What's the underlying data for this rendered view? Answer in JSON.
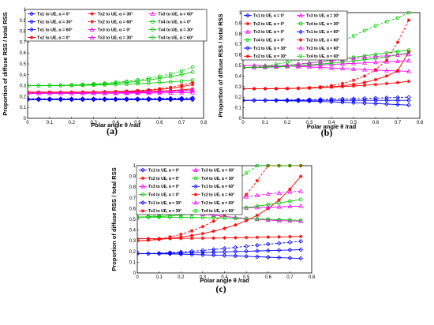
{
  "chart_data": [
    {
      "type": "line",
      "panel_label": "(a)",
      "xlabel": "Polar angle θ /rad",
      "ylabel": "Proportion of diffuse RSS / total RSS",
      "xlim": [
        0,
        0.8
      ],
      "ylim": [
        0,
        1
      ],
      "xticks": [
        "0",
        "0.1",
        "0.2",
        "0.3",
        "0.4",
        "0.5",
        "0.6",
        "0.7",
        "0.8"
      ],
      "yticks": [
        "0",
        "0.1",
        "0.2",
        "0.3",
        "0.4",
        "0.5",
        "0.6",
        "0.7",
        "0.8",
        "0.9",
        "1"
      ],
      "legend_position": "top",
      "x": [
        0,
        0.05,
        0.1,
        0.15,
        0.2,
        0.25,
        0.3,
        0.35,
        0.4,
        0.45,
        0.5,
        0.55,
        0.6,
        0.65,
        0.7,
        0.75
      ],
      "series": [
        {
          "name": "Tx1 to UE, α = 0°",
          "color": "#0000ff",
          "marker": "diamond",
          "dash": "solid",
          "values": [
            0.175,
            0.175,
            0.175,
            0.175,
            0.175,
            0.175,
            0.175,
            0.175,
            0.175,
            0.175,
            0.175,
            0.176,
            0.176,
            0.177,
            0.178,
            0.18
          ]
        },
        {
          "name": "Tx1 to UE, α = 30°",
          "color": "#0000ff",
          "marker": "diamond",
          "dash": "solid",
          "values": [
            0.17,
            0.17,
            0.17,
            0.17,
            0.17,
            0.17,
            0.17,
            0.17,
            0.17,
            0.17,
            0.17,
            0.17,
            0.17,
            0.17,
            0.17,
            0.17
          ]
        },
        {
          "name": "Tx1 to UE, α = 60°",
          "color": "#0000ff",
          "marker": "diamond",
          "dash": "dashed",
          "values": [
            0.18,
            0.18,
            0.18,
            0.18,
            0.18,
            0.18,
            0.18,
            0.18,
            0.18,
            0.18,
            0.181,
            0.182,
            0.183,
            0.184,
            0.186,
            0.188
          ]
        },
        {
          "name": "Tx2 to UE, α = 0°",
          "color": "#ff0000",
          "marker": "star",
          "dash": "solid",
          "values": [
            0.24,
            0.24,
            0.24,
            0.24,
            0.24,
            0.241,
            0.242,
            0.243,
            0.245,
            0.248,
            0.252,
            0.257,
            0.265,
            0.275,
            0.29,
            0.31
          ]
        },
        {
          "name": "Tx2 to UE, α = 30°",
          "color": "#ff0000",
          "marker": "star",
          "dash": "solid",
          "values": [
            0.24,
            0.24,
            0.24,
            0.24,
            0.24,
            0.24,
            0.241,
            0.241,
            0.242,
            0.243,
            0.245,
            0.247,
            0.25,
            0.255,
            0.262,
            0.27
          ]
        },
        {
          "name": "Tx2 to UE, α = 60°",
          "color": "#ff0000",
          "marker": "star",
          "dash": "dashed",
          "values": [
            0.24,
            0.24,
            0.24,
            0.24,
            0.24,
            0.241,
            0.242,
            0.244,
            0.246,
            0.25,
            0.255,
            0.262,
            0.272,
            0.285,
            0.305,
            0.33
          ]
        },
        {
          "name": "Tx3 to UE, α = 0°",
          "color": "#ff00ff",
          "marker": "triangle",
          "dash": "solid",
          "values": [
            0.23,
            0.23,
            0.23,
            0.23,
            0.23,
            0.23,
            0.231,
            0.232,
            0.233,
            0.235,
            0.237,
            0.24,
            0.243,
            0.247,
            0.25,
            0.255
          ]
        },
        {
          "name": "Tx3 to UE, α = 30°",
          "color": "#ff00ff",
          "marker": "triangle",
          "dash": "solid",
          "values": [
            0.23,
            0.23,
            0.23,
            0.23,
            0.23,
            0.23,
            0.23,
            0.23,
            0.231,
            0.231,
            0.232,
            0.232,
            0.233,
            0.234,
            0.235,
            0.236
          ]
        },
        {
          "name": "Tx3 to UE, α = 60°",
          "color": "#ff00ff",
          "marker": "triangle",
          "dash": "dashed",
          "values": [
            0.23,
            0.23,
            0.23,
            0.23,
            0.23,
            0.231,
            0.232,
            0.233,
            0.235,
            0.238,
            0.24,
            0.243,
            0.246,
            0.25,
            0.255,
            0.26
          ]
        },
        {
          "name": "Tx4 to UE, α = 0°",
          "color": "#00cc00",
          "marker": "circle",
          "dash": "solid",
          "values": [
            0.3,
            0.3,
            0.301,
            0.302,
            0.304,
            0.307,
            0.311,
            0.316,
            0.322,
            0.33,
            0.34,
            0.352,
            0.366,
            0.383,
            0.403,
            0.425
          ]
        },
        {
          "name": "Tx4 to UE, α = 30°",
          "color": "#00cc00",
          "marker": "circle",
          "dash": "solid",
          "values": [
            0.3,
            0.3,
            0.3,
            0.301,
            0.302,
            0.303,
            0.305,
            0.307,
            0.31,
            0.314,
            0.318,
            0.323,
            0.329,
            0.335,
            0.342,
            0.35
          ]
        },
        {
          "name": "Tx4 to UE, α = 60°",
          "color": "#00cc00",
          "marker": "circle",
          "dash": "dashed",
          "values": [
            0.3,
            0.301,
            0.302,
            0.304,
            0.307,
            0.311,
            0.316,
            0.322,
            0.33,
            0.34,
            0.352,
            0.367,
            0.385,
            0.407,
            0.435,
            0.47
          ]
        }
      ]
    },
    {
      "type": "line",
      "panel_label": "(b)",
      "xlabel": "Polar angle θ /rad",
      "ylabel": "Proportion of diffuse RSS / total RSS",
      "xlim": [
        0,
        0.8
      ],
      "ylim": [
        0,
        1
      ],
      "xticks": [
        "0",
        "0.1",
        "0.2",
        "0.3",
        "0.4",
        "0.5",
        "0.6",
        "0.7",
        "0.8"
      ],
      "yticks": [
        "0",
        "0.1",
        "0.2",
        "0.3",
        "0.4",
        "0.5",
        "0.6",
        "0.7",
        "0.8",
        "0.9",
        "1"
      ],
      "legend_position": "top-left",
      "x": [
        0,
        0.05,
        0.1,
        0.15,
        0.2,
        0.25,
        0.3,
        0.35,
        0.4,
        0.45,
        0.5,
        0.55,
        0.6,
        0.65,
        0.7,
        0.75
      ],
      "series": [
        {
          "name": "Tx1 to UE, α = 0°",
          "color": "#0000ff",
          "marker": "diamond",
          "dash": "solid",
          "values": [
            0.17,
            0.17,
            0.169,
            0.168,
            0.166,
            0.164,
            0.162,
            0.159,
            0.156,
            0.152,
            0.148,
            0.144,
            0.14,
            0.135,
            0.13,
            0.125
          ]
        },
        {
          "name": "Tx2 to UE, α = 0°",
          "color": "#ff0000",
          "marker": "star",
          "dash": "solid",
          "values": [
            0.28,
            0.28,
            0.28,
            0.281,
            0.282,
            0.284,
            0.287,
            0.29,
            0.295,
            0.3,
            0.306,
            0.313,
            0.32,
            0.329,
            0.338,
            0.35
          ]
        },
        {
          "name": "Tx3 to UE, α = 0°",
          "color": "#ff00ff",
          "marker": "triangle",
          "dash": "solid",
          "values": [
            0.5,
            0.5,
            0.499,
            0.497,
            0.494,
            0.49,
            0.486,
            0.481,
            0.476,
            0.471,
            0.466,
            0.461,
            0.456,
            0.452,
            0.448,
            0.445
          ]
        },
        {
          "name": "Tx4 to UE, α = 0°",
          "color": "#00cc00",
          "marker": "circle",
          "dash": "solid",
          "values": [
            0.48,
            0.482,
            0.486,
            0.492,
            0.5,
            0.51,
            0.522,
            0.535,
            0.549,
            0.563,
            0.577,
            0.591,
            0.605,
            0.619,
            0.633,
            0.645
          ]
        },
        {
          "name": "Tx1 to UE, α = 30°",
          "color": "#0000ff",
          "marker": "diamond",
          "dash": "solid",
          "values": [
            0.17,
            0.17,
            0.17,
            0.17,
            0.17,
            0.17,
            0.17,
            0.17,
            0.17,
            0.17,
            0.17,
            0.17,
            0.17,
            0.17,
            0.17,
            0.17
          ]
        },
        {
          "name": "Tx2 to UE, α = 30°",
          "color": "#ff0000",
          "marker": "star",
          "dash": "solid",
          "values": [
            0.28,
            0.28,
            0.28,
            0.28,
            0.281,
            0.283,
            0.286,
            0.291,
            0.298,
            0.308,
            0.321,
            0.34,
            0.366,
            0.4,
            0.45,
            0.63
          ]
        },
        {
          "name": "Tx3 to UE, α = 30°",
          "color": "#ff00ff",
          "marker": "triangle",
          "dash": "solid",
          "values": [
            0.48,
            0.481,
            0.483,
            0.486,
            0.49,
            0.495,
            0.5,
            0.505,
            0.51,
            0.515,
            0.52,
            0.525,
            0.53,
            0.535,
            0.54,
            0.545
          ]
        },
        {
          "name": "Tx4 to UE, α = 30°",
          "color": "#00cc00",
          "marker": "circle",
          "dash": "solid",
          "values": [
            0.48,
            0.481,
            0.483,
            0.487,
            0.492,
            0.498,
            0.505,
            0.513,
            0.522,
            0.532,
            0.543,
            0.555,
            0.568,
            0.583,
            0.6,
            0.62
          ]
        },
        {
          "name": "Tx1 to UE, α = 60°",
          "color": "#0000ff",
          "marker": "diamond",
          "dash": "dashed",
          "values": [
            0.17,
            0.17,
            0.171,
            0.172,
            0.173,
            0.175,
            0.177,
            0.179,
            0.181,
            0.183,
            0.185,
            0.188,
            0.191,
            0.194,
            0.197,
            0.2
          ]
        },
        {
          "name": "Tx2 to UE, α = 60°",
          "color": "#ff0000",
          "marker": "star",
          "dash": "dashed",
          "values": [
            0.28,
            0.28,
            0.28,
            0.281,
            0.282,
            0.285,
            0.29,
            0.298,
            0.31,
            0.33,
            0.36,
            0.4,
            0.46,
            0.55,
            0.72,
            0.93
          ]
        },
        {
          "name": "Tx3 to UE, α = 60°",
          "color": "#ff00ff",
          "marker": "triangle",
          "dash": "dashed",
          "values": [
            0.48,
            0.482,
            0.487,
            0.494,
            0.503,
            0.513,
            0.524,
            0.535,
            0.546,
            0.557,
            0.567,
            0.576,
            0.585,
            0.593,
            0.6,
            0.605
          ]
        },
        {
          "name": "Tx4 to UE, α = 60°",
          "color": "#00cc00",
          "marker": "circle",
          "dash": "dashed",
          "values": [
            0.48,
            0.484,
            0.494,
            0.51,
            0.532,
            0.56,
            0.594,
            0.634,
            0.68,
            0.73,
            0.78,
            0.83,
            0.875,
            0.915,
            0.95,
            1.0
          ]
        }
      ]
    },
    {
      "type": "line",
      "panel_label": "(c)",
      "xlabel": "Polar angle θ /rad",
      "ylabel": "Proportion of diffuse RSS / total RSS",
      "xlim": [
        0,
        0.8
      ],
      "ylim": [
        0,
        1
      ],
      "xticks": [
        "0",
        "0.1",
        "0.2",
        "0.3",
        "0.4",
        "0.5",
        "0.6",
        "0.7",
        "0.8"
      ],
      "yticks": [
        "0",
        "0.1",
        "0.2",
        "0.3",
        "0.4",
        "0.5",
        "0.6",
        "0.7",
        "0.8",
        "0.9",
        "1"
      ],
      "legend_position": "top-left",
      "x": [
        0,
        0.05,
        0.1,
        0.15,
        0.2,
        0.25,
        0.3,
        0.35,
        0.4,
        0.45,
        0.5,
        0.55,
        0.6,
        0.65,
        0.7,
        0.75
      ],
      "series": [
        {
          "name": "Tx1 to UE, α = 0°",
          "color": "#0000ff",
          "marker": "diamond",
          "dash": "solid",
          "values": [
            0.18,
            0.18,
            0.179,
            0.177,
            0.175,
            0.172,
            0.169,
            0.166,
            0.163,
            0.159,
            0.155,
            0.151,
            0.147,
            0.143,
            0.139,
            0.135
          ]
        },
        {
          "name": "Tx2 to UE, α = 0°",
          "color": "#ff0000",
          "marker": "star",
          "dash": "solid",
          "values": [
            0.32,
            0.32,
            0.32,
            0.321,
            0.322,
            0.323,
            0.324,
            0.325,
            0.327,
            0.328,
            0.33,
            0.332,
            0.334,
            0.336,
            0.338,
            0.34
          ]
        },
        {
          "name": "Tx3 to UE, α = 0°",
          "color": "#ff00ff",
          "marker": "triangle",
          "dash": "solid",
          "values": [
            0.58,
            0.579,
            0.576,
            0.571,
            0.564,
            0.556,
            0.547,
            0.537,
            0.527,
            0.517,
            0.508,
            0.5,
            0.493,
            0.488,
            0.485,
            0.483
          ]
        },
        {
          "name": "Tx4 to UE, α = 0°",
          "color": "#00cc00",
          "marker": "circle",
          "dash": "solid",
          "values": [
            0.52,
            0.52,
            0.52,
            0.52,
            0.519,
            0.518,
            0.516,
            0.514,
            0.512,
            0.509,
            0.506,
            0.503,
            0.5,
            0.497,
            0.494,
            0.49
          ]
        },
        {
          "name": "Tx1 to UE, α = 30°",
          "color": "#0000ff",
          "marker": "diamond",
          "dash": "solid",
          "values": [
            0.18,
            0.18,
            0.181,
            0.183,
            0.185,
            0.187,
            0.19,
            0.193,
            0.196,
            0.199,
            0.202,
            0.205,
            0.208,
            0.211,
            0.214,
            0.217
          ]
        },
        {
          "name": "Tx2 to UE, α = 30°",
          "color": "#ff0000",
          "marker": "star",
          "dash": "solid",
          "values": [
            0.3,
            0.305,
            0.312,
            0.322,
            0.334,
            0.349,
            0.367,
            0.389,
            0.415,
            0.447,
            0.487,
            0.537,
            0.6,
            0.68,
            0.78,
            0.9
          ]
        },
        {
          "name": "Tx3 to UE, α = 30°",
          "color": "#ff00ff",
          "marker": "triangle",
          "dash": "solid",
          "values": [
            0.58,
            0.581,
            0.583,
            0.586,
            0.589,
            0.592,
            0.595,
            0.598,
            0.601,
            0.604,
            0.607,
            0.61,
            0.613,
            0.616,
            0.62,
            0.623
          ]
        },
        {
          "name": "Tx4 to UE, α = 30°",
          "color": "#00cc00",
          "marker": "circle",
          "dash": "solid",
          "values": [
            0.52,
            0.522,
            0.526,
            0.532,
            0.54,
            0.549,
            0.559,
            0.57,
            0.582,
            0.595,
            0.608,
            0.622,
            0.637,
            0.652,
            0.668,
            0.685
          ]
        },
        {
          "name": "Tx1 to UE, α = 60°",
          "color": "#0000ff",
          "marker": "diamond",
          "dash": "dashed",
          "values": [
            0.18,
            0.181,
            0.184,
            0.189,
            0.195,
            0.202,
            0.21,
            0.219,
            0.228,
            0.238,
            0.248,
            0.258,
            0.268,
            0.277,
            0.286,
            0.295
          ]
        },
        {
          "name": "Tx2 to UE, α = 60°",
          "color": "#ff0000",
          "marker": "star",
          "dash": "dashed",
          "values": [
            0.3,
            0.306,
            0.318,
            0.336,
            0.36,
            0.392,
            0.432,
            0.482,
            0.545,
            0.625,
            0.73,
            0.86,
            1.0,
            1.0,
            1.0,
            1.0
          ]
        },
        {
          "name": "Tx3 to UE, α = 60°",
          "color": "#ff00ff",
          "marker": "triangle",
          "dash": "dashed",
          "values": [
            0.58,
            0.583,
            0.59,
            0.601,
            0.614,
            0.629,
            0.645,
            0.662,
            0.679,
            0.695,
            0.71,
            0.724,
            0.736,
            0.746,
            0.755,
            0.762
          ]
        },
        {
          "name": "Tx4 to UE, α = 60°",
          "color": "#00cc00",
          "marker": "circle",
          "dash": "dashed",
          "values": [
            0.52,
            0.525,
            0.538,
            0.56,
            0.59,
            0.628,
            0.674,
            0.728,
            0.79,
            0.86,
            0.93,
            1.0,
            1.0,
            1.0,
            1.0,
            1.0
          ]
        }
      ]
    }
  ]
}
